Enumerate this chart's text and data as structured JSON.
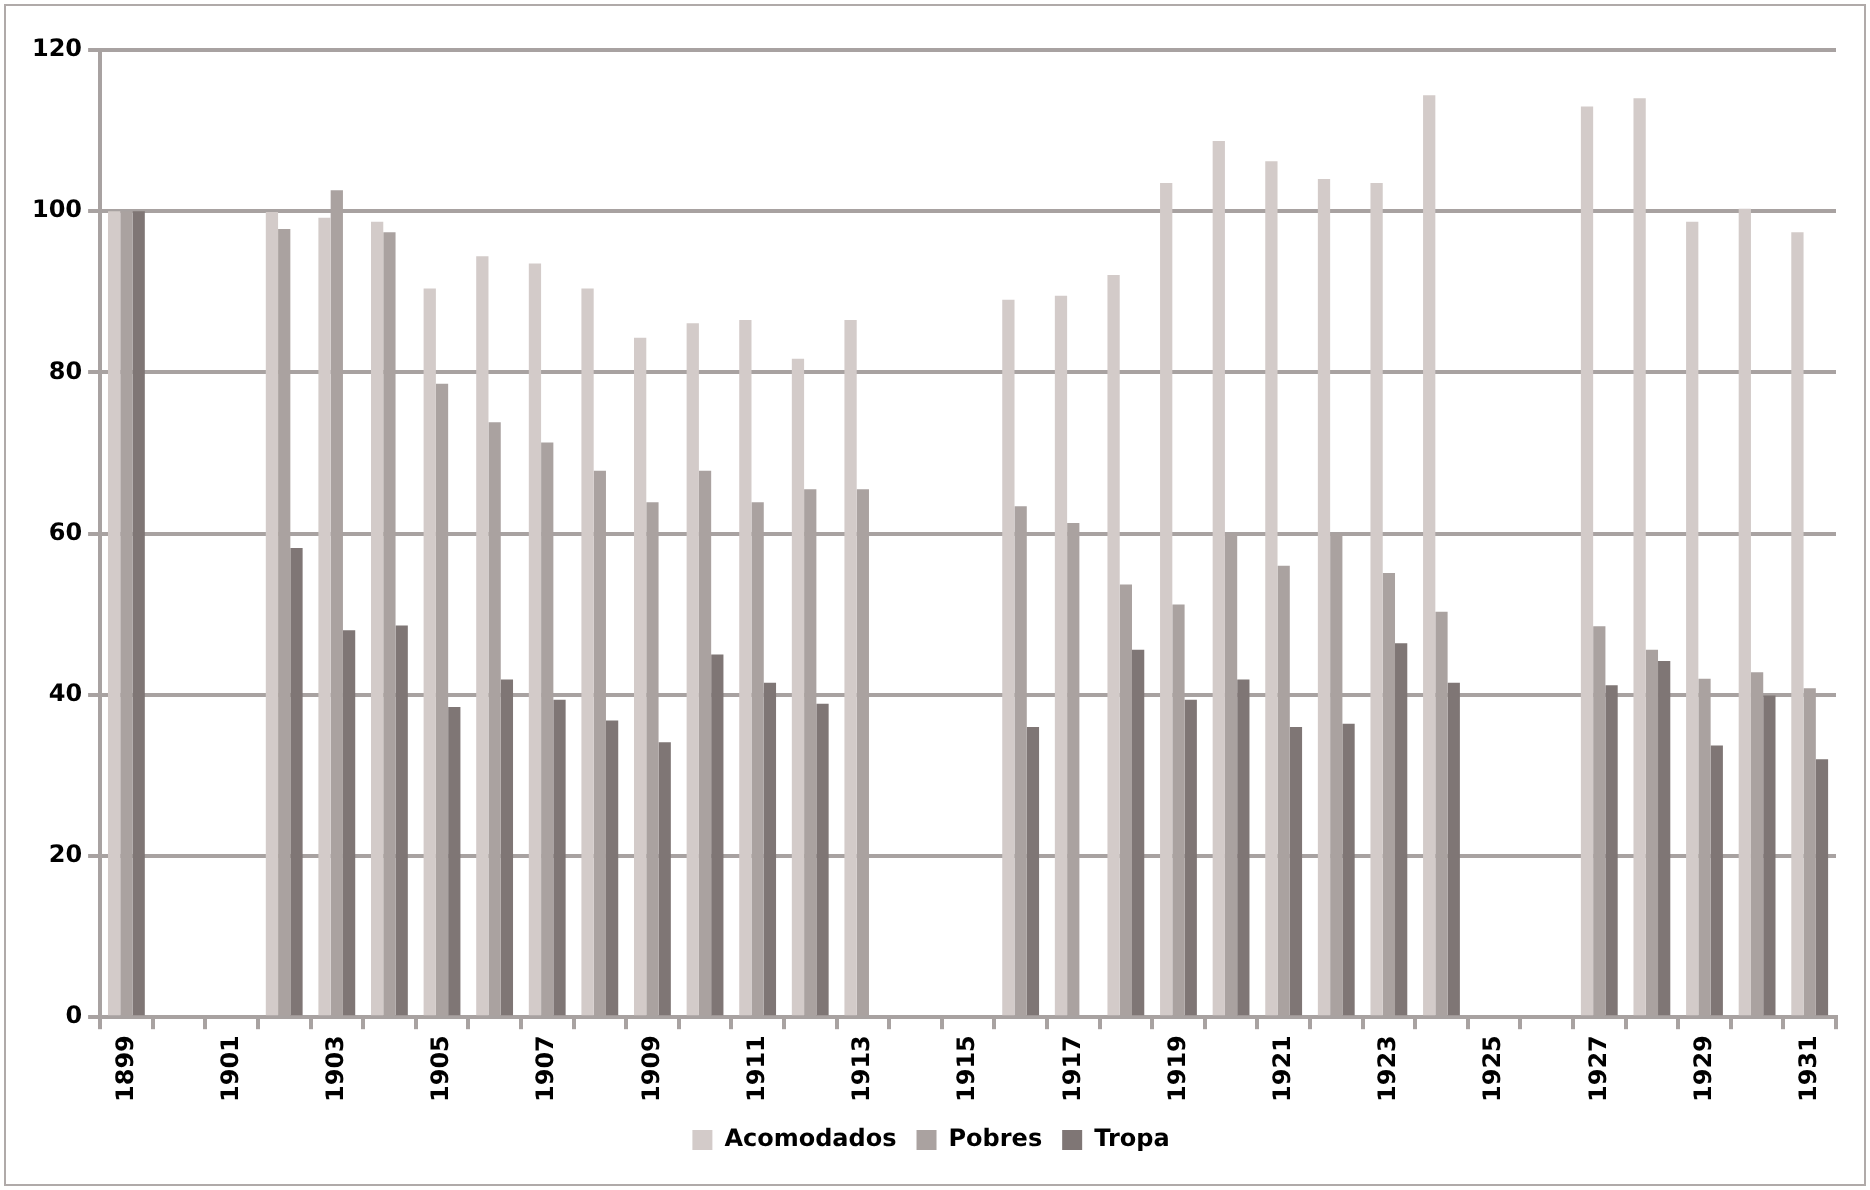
{
  "chart_data": {
    "type": "bar",
    "categories": [
      "1899",
      null,
      "1901",
      null,
      "1903",
      null,
      "1905",
      null,
      "1907",
      null,
      "1909",
      null,
      "1911",
      null,
      "1913",
      null,
      "1915",
      null,
      "1917",
      null,
      "1919",
      null,
      "1921",
      null,
      "1923",
      null,
      "1925",
      null,
      "1927",
      null,
      "1929",
      null,
      "1931"
    ],
    "series": [
      {
        "name": "Acomodados",
        "color": "#d3cbc9",
        "values": [
          100,
          null,
          null,
          99.9,
          99.2,
          98.7,
          90.4,
          94.4,
          93.5,
          90.4,
          84.3,
          86.1,
          86.5,
          81.7,
          86.5,
          null,
          null,
          89.0,
          89.5,
          92.1,
          103.5,
          108.7,
          106.2,
          104.0,
          103.5,
          114.4,
          null,
          null,
          113.0,
          114.0,
          98.7,
          100.3,
          97.4
        ]
      },
      {
        "name": "Pobres",
        "color": "#aaa2a0",
        "values": [
          100,
          null,
          null,
          97.8,
          102.6,
          97.4,
          78.6,
          73.8,
          71.3,
          67.8,
          63.9,
          67.8,
          63.9,
          65.5,
          65.5,
          null,
          null,
          63.4,
          61.3,
          53.7,
          51.2,
          60.0,
          56.0,
          60.0,
          55.1,
          50.3,
          null,
          null,
          48.5,
          45.6,
          42.0,
          42.8,
          40.8
        ]
      },
      {
        "name": "Tropa",
        "color": "#7f7675",
        "values": [
          100,
          null,
          null,
          58.2,
          48.0,
          48.6,
          38.5,
          41.9,
          39.4,
          36.8,
          34.1,
          45.0,
          41.5,
          38.9,
          null,
          null,
          null,
          36.0,
          null,
          45.6,
          39.4,
          41.9,
          36.0,
          36.4,
          46.4,
          41.5,
          null,
          null,
          41.2,
          44.2,
          33.7,
          39.9,
          32.0
        ]
      }
    ],
    "ylim": [
      0,
      120
    ],
    "yticks": [
      0,
      20,
      40,
      60,
      80,
      100,
      120
    ],
    "grid": "y",
    "legend": "bottom"
  }
}
